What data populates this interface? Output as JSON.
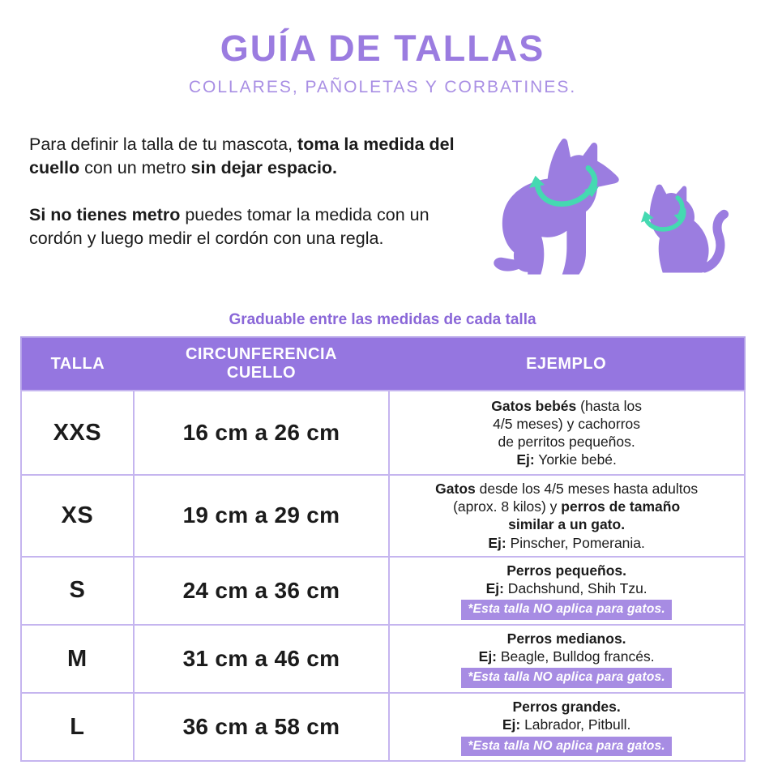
{
  "page": {
    "title": "GUÍA DE TALLAS",
    "subtitle": "COLLARES, PAÑOLETAS Y CORBATINES."
  },
  "intro": {
    "p1": [
      {
        "t": "Para definir la talla de  tu mascota, "
      },
      {
        "t": "toma la medida del cuello",
        "b": true
      },
      {
        "t": " con un metro "
      },
      {
        "t": "sin dejar espacio.",
        "b": true
      }
    ],
    "p2": [
      {
        "t": "Si no tienes metro",
        "b": true
      },
      {
        "t": " puedes tomar la medida con un cordón y luego medir el cordón con una regla."
      }
    ]
  },
  "illustration": {
    "dog_icon": "dog-silhouette-with-neck-measuring-arrow",
    "cat_icon": "cat-silhouette-with-neck-measuring-arrow",
    "body_color": "#9b7de0",
    "arrow_color": "#45d9b1"
  },
  "table_caption": "Graduable entre las medidas de cada talla",
  "table": {
    "headers": [
      "TALLA",
      "CIRCUNFERENCIA\nCUELLO",
      "EJEMPLO"
    ],
    "rows": [
      {
        "size": "XXS",
        "range": "16 cm a 26 cm",
        "example": [
          [
            {
              "t": "Gatos bebés",
              "b": true
            },
            {
              "t": " (hasta los"
            }
          ],
          [
            {
              "t": "4/5 meses) y cachorros"
            }
          ],
          [
            {
              "t": "de perritos pequeños."
            }
          ],
          [
            {
              "t": "Ej:",
              "b": true
            },
            {
              "t": " Yorkie bebé."
            }
          ]
        ],
        "note": null
      },
      {
        "size": "XS",
        "range": "19 cm a 29 cm",
        "example": [
          [
            {
              "t": "Gatos",
              "b": true
            },
            {
              "t": " desde los 4/5 meses hasta adultos"
            }
          ],
          [
            {
              "t": "(aprox. 8 kilos) y "
            },
            {
              "t": "perros de tamaño",
              "b": true
            }
          ],
          [
            {
              "t": "similar a un gato.",
              "b": true
            }
          ],
          [
            {
              "t": "Ej:",
              "b": true
            },
            {
              "t": " Pinscher, Pomerania."
            }
          ]
        ],
        "note": null
      },
      {
        "size": "S",
        "range": "24 cm a 36 cm",
        "example": [
          [
            {
              "t": "Perros pequeños.",
              "b": true
            }
          ],
          [
            {
              "t": "Ej:",
              "b": true
            },
            {
              "t": " Dachshund, Shih Tzu."
            }
          ]
        ],
        "note": "*Esta talla NO aplica para gatos."
      },
      {
        "size": "M",
        "range": "31 cm a 46 cm",
        "example": [
          [
            {
              "t": "Perros medianos.",
              "b": true
            }
          ],
          [
            {
              "t": "Ej:",
              "b": true
            },
            {
              "t": " Beagle, Bulldog francés."
            }
          ]
        ],
        "note": "*Esta talla NO aplica para gatos."
      },
      {
        "size": "L",
        "range": "36 cm a 58 cm",
        "example": [
          [
            {
              "t": "Perros grandes.",
              "b": true
            }
          ],
          [
            {
              "t": "Ej:",
              "b": true
            },
            {
              "t": " Labrador, Pitbull."
            }
          ]
        ],
        "note": "*Esta talla NO aplica para gatos."
      }
    ]
  },
  "colors": {
    "title": "#9b7ce0",
    "subtitle": "#a98fe4",
    "caption": "#8a67d8",
    "table_header_bg": "#9576e0",
    "note_bg": "#a78ce3",
    "pet_body": "#9b7de0",
    "measure_arrow": "#45d9b1"
  }
}
